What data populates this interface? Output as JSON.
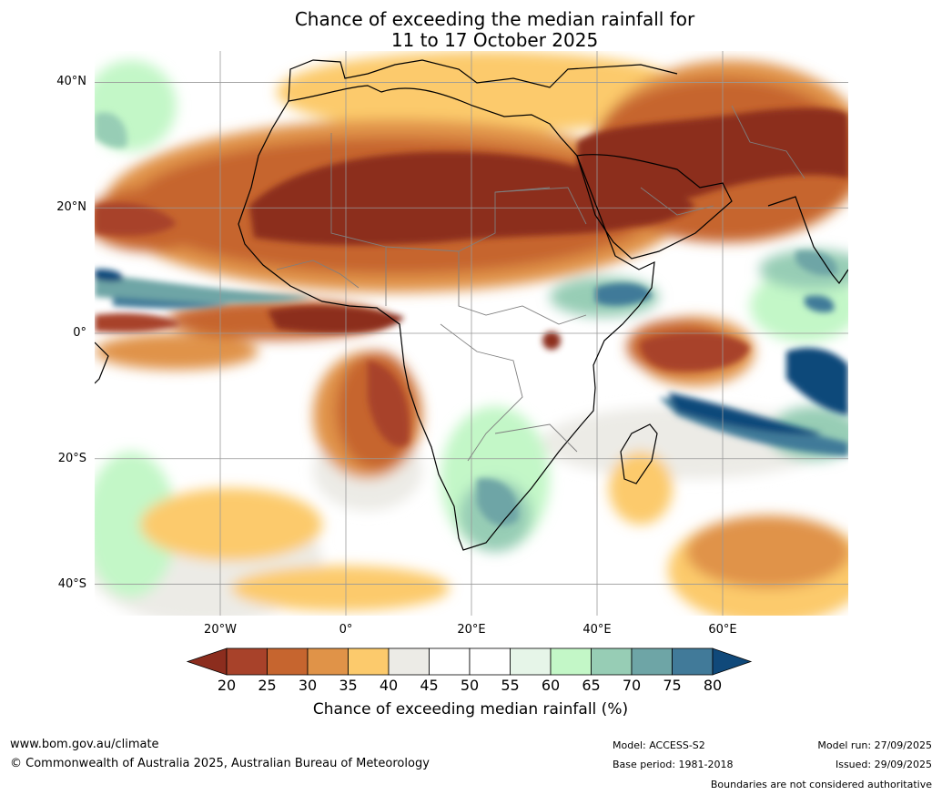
{
  "title": {
    "line1": "Chance of exceeding the median rainfall for",
    "line2": "11 to 17 October 2025"
  },
  "map": {
    "extent": {
      "lon_min": -40,
      "lon_max": 80,
      "lat_min": -45,
      "lat_max": 45
    },
    "lat_ticks": [
      {
        "label": "40°N",
        "value": 40
      },
      {
        "label": "20°N",
        "value": 20
      },
      {
        "label": "0°",
        "value": 0
      },
      {
        "label": "20°S",
        "value": -20
      },
      {
        "label": "40°S",
        "value": -40
      }
    ],
    "lon_ticks": [
      {
        "label": "20°W",
        "value": -20
      },
      {
        "label": "0°",
        "value": 0
      },
      {
        "label": "20°E",
        "value": 20
      },
      {
        "label": "40°E",
        "value": 40
      },
      {
        "label": "60°E",
        "value": 60
      }
    ],
    "colors": {
      "ocean": "#ffffff",
      "gridline": "#999999",
      "coastline": "#000000",
      "borders": "#7f7f7f"
    }
  },
  "colorbar": {
    "label": "Chance of exceeding median rainfall (%)",
    "ticks": [
      "20",
      "25",
      "30",
      "35",
      "40",
      "45",
      "50",
      "55",
      "60",
      "65",
      "70",
      "75",
      "80"
    ],
    "under_color": "#8c2d1e",
    "over_color": "#10497a",
    "colors": [
      "#a8422a",
      "#c6652f",
      "#e09348",
      "#fcca6c",
      "#ecebe6",
      "#ffffff",
      "#ffffff",
      "#e6f5e8",
      "#c3f7c7",
      "#97cdb5",
      "#6ea5a6",
      "#417a99"
    ]
  },
  "footer": {
    "website": "www.bom.gov.au/climate",
    "copyright": "© Commonwealth of Australia 2025, Australian Bureau of Meteorology",
    "model": "Model: ACCESS-S2",
    "base_period": "Base period: 1981-2018",
    "model_run": "Model run: 27/09/2025",
    "issued": "Issued: 29/09/2025",
    "disclaimer": "Boundaries are not considered authoritative"
  }
}
